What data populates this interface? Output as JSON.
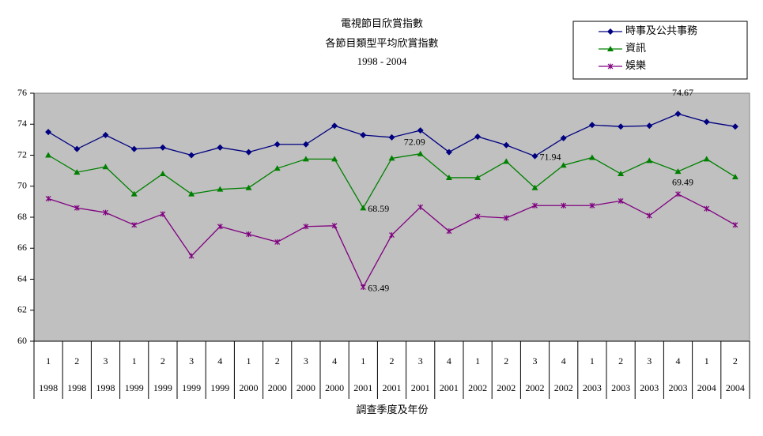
{
  "chart_data": {
    "type": "line",
    "title_lines": [
      "電視節目欣賞指數",
      "各節目類型平均欣賞指數",
      "1998 - 2004"
    ],
    "x_label": "調查季度及年份",
    "categories": [
      "1",
      "2",
      "3",
      "1",
      "2",
      "3",
      "4",
      "1",
      "2",
      "3",
      "4",
      "1",
      "2",
      "3",
      "4",
      "1",
      "2",
      "3",
      "4",
      "1",
      "2",
      "3",
      "4",
      "1",
      "2"
    ],
    "category_years": [
      "1998",
      "1998",
      "1998",
      "1999",
      "1999",
      "1999",
      "1999",
      "2000",
      "2000",
      "2000",
      "2000",
      "2001",
      "2001",
      "2001",
      "2001",
      "2002",
      "2002",
      "2002",
      "2002",
      "2003",
      "2003",
      "2003",
      "2003",
      "2004",
      "2004"
    ],
    "series": [
      {
        "name": "時事及公共事務",
        "color": "#000080",
        "marker": "diamond",
        "labeled_points": [
          17,
          22
        ],
        "values": [
          73.5,
          72.4,
          73.3,
          72.4,
          72.5,
          72.0,
          72.5,
          72.2,
          72.7,
          72.7,
          73.9,
          73.3,
          73.15,
          73.6,
          72.2,
          73.2,
          72.65,
          71.94,
          73.1,
          73.95,
          73.85,
          73.9,
          74.67,
          74.15,
          73.85
        ]
      },
      {
        "name": "資訊",
        "color": "#008000",
        "marker": "triangle",
        "labeled_points": [
          11,
          13
        ],
        "values": [
          72.0,
          70.9,
          71.25,
          69.5,
          70.8,
          69.5,
          69.8,
          69.9,
          71.15,
          71.75,
          71.75,
          68.59,
          71.8,
          72.09,
          70.55,
          70.55,
          71.6,
          69.9,
          71.35,
          71.85,
          70.8,
          71.65,
          70.95,
          71.75,
          70.6
        ]
      },
      {
        "name": "娛樂",
        "color": "#800080",
        "marker": "star",
        "labeled_points": [
          11,
          22
        ],
        "values": [
          69.2,
          68.6,
          68.3,
          67.5,
          68.2,
          65.5,
          67.4,
          66.9,
          66.4,
          67.4,
          67.45,
          63.49,
          66.85,
          68.65,
          67.1,
          68.05,
          67.95,
          68.75,
          68.75,
          68.75,
          69.05,
          68.1,
          69.49,
          68.55,
          67.5
        ]
      }
    ],
    "ylim": [
      60,
      76
    ],
    "yticks": [
      60,
      62,
      64,
      66,
      68,
      70,
      72,
      74,
      76
    ],
    "plot_background": "#c0c0c0",
    "grid": false,
    "legend": "top-right"
  }
}
